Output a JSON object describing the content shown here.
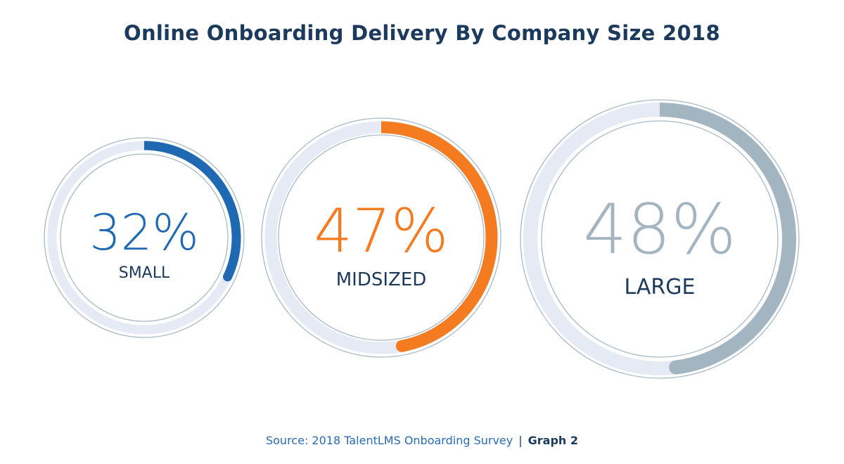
{
  "chart_data": {
    "type": "pie",
    "title": "Online Onboarding Delivery By Company Size 2018",
    "series": [
      {
        "name": "SMALL",
        "value": 32,
        "label": "32%",
        "color": "#1f69b3"
      },
      {
        "name": "MIDSIZED",
        "value": 47,
        "label": "47%",
        "color": "#f47b20"
      },
      {
        "name": "LARGE",
        "value": 48,
        "label": "48%",
        "color": "#a4b5c2"
      }
    ],
    "track_color": "#e6eaf4",
    "ring_color": "#a9b9c6",
    "label_color": "#1b3a5c"
  },
  "footer": {
    "source": "Source: 2018 TalentLMS Onboarding Survey",
    "separator": "|",
    "graph": "Graph 2"
  }
}
